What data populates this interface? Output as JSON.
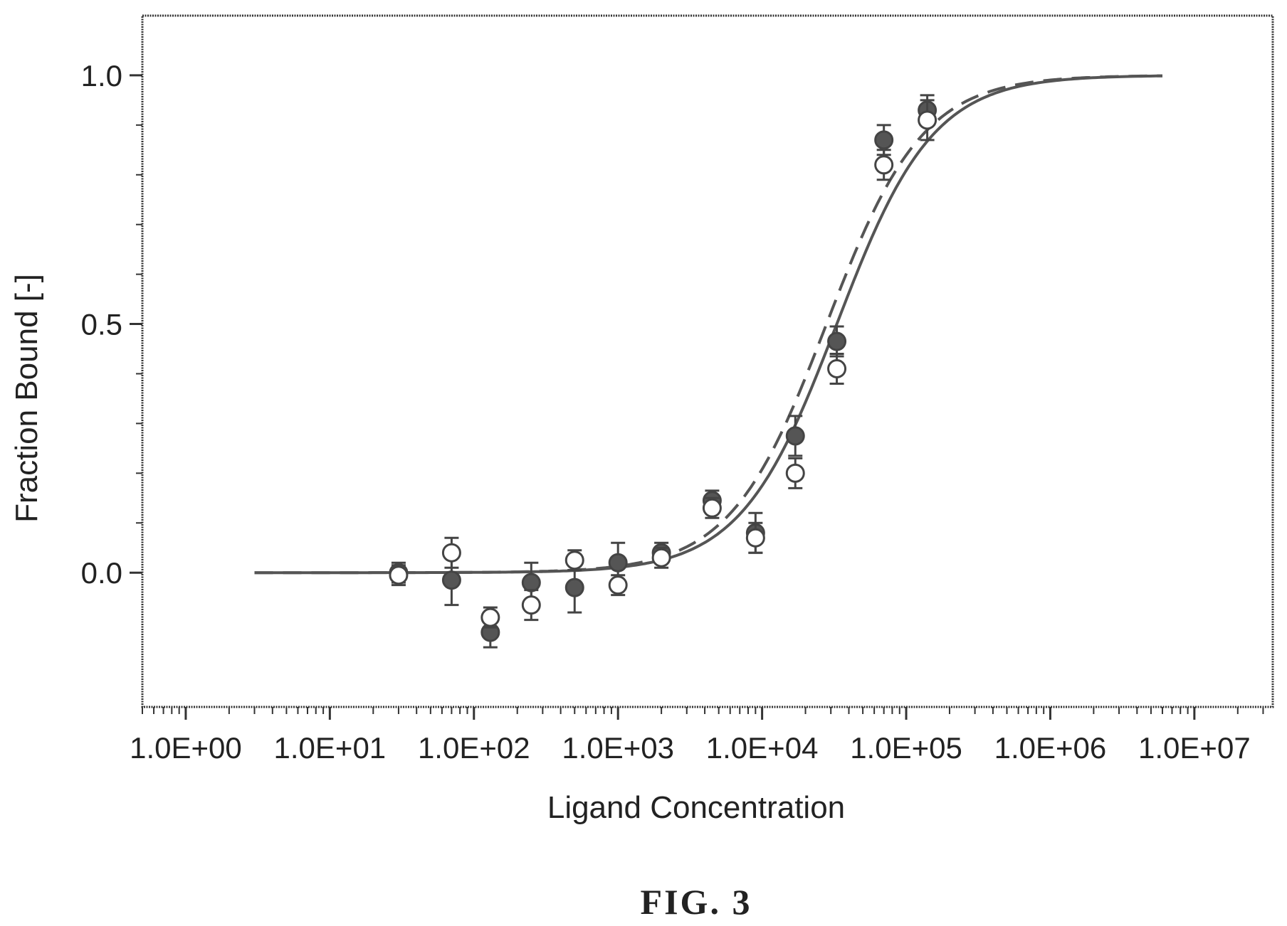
{
  "chart_data": {
    "type": "scatter",
    "xlabel": "Ligand Concentration",
    "ylabel": "Fraction Bound [-]",
    "xscale": "log",
    "xlim": [
      0.5,
      35000000
    ],
    "ylim": [
      -0.27,
      1.12
    ],
    "x_tick_values": [
      1,
      10,
      100,
      1000,
      10000,
      100000,
      1000000,
      10000000
    ],
    "x_tick_labels": [
      "1.0E+00",
      "1.0E+01",
      "1.0E+02",
      "1.0E+03",
      "1.0E+04",
      "1.0E+05",
      "1.0E+06",
      "1.0E+07"
    ],
    "y_tick_values": [
      0,
      0.5,
      1
    ],
    "y_tick_labels": [
      "0.0",
      "0.5",
      "1.0"
    ],
    "grid": false,
    "legend": "none",
    "series": [
      {
        "marker": "filled-circle",
        "color": "#555555",
        "points": [
          {
            "x": 30,
            "y": 0.0,
            "err": 0.02
          },
          {
            "x": 70,
            "y": -0.015,
            "err": 0.05
          },
          {
            "x": 130,
            "y": -0.12,
            "err": 0.03
          },
          {
            "x": 250,
            "y": -0.02,
            "err": 0.04
          },
          {
            "x": 500,
            "y": -0.03,
            "err": 0.05
          },
          {
            "x": 1000,
            "y": 0.02,
            "err": 0.04
          },
          {
            "x": 2000,
            "y": 0.04,
            "err": 0.02
          },
          {
            "x": 4500,
            "y": 0.145,
            "err": 0.02
          },
          {
            "x": 9000,
            "y": 0.08,
            "err": 0.04
          },
          {
            "x": 17000,
            "y": 0.275,
            "err": 0.04
          },
          {
            "x": 33000,
            "y": 0.465,
            "err": 0.03
          },
          {
            "x": 70000,
            "y": 0.87,
            "err": 0.03
          },
          {
            "x": 140000,
            "y": 0.93,
            "err": 0.03
          }
        ]
      },
      {
        "marker": "open-circle",
        "color": "#555555",
        "points": [
          {
            "x": 30,
            "y": -0.005,
            "err": 0.02
          },
          {
            "x": 70,
            "y": 0.04,
            "err": 0.03
          },
          {
            "x": 130,
            "y": -0.09,
            "err": 0.02
          },
          {
            "x": 250,
            "y": -0.065,
            "err": 0.03
          },
          {
            "x": 500,
            "y": 0.025,
            "err": 0.02
          },
          {
            "x": 1000,
            "y": -0.025,
            "err": 0.02
          },
          {
            "x": 2000,
            "y": 0.03,
            "err": 0.02
          },
          {
            "x": 4500,
            "y": 0.13,
            "err": 0.02
          },
          {
            "x": 9000,
            "y": 0.07,
            "err": 0.03
          },
          {
            "x": 17000,
            "y": 0.2,
            "err": 0.03
          },
          {
            "x": 33000,
            "y": 0.41,
            "err": 0.03
          },
          {
            "x": 70000,
            "y": 0.82,
            "err": 0.03
          },
          {
            "x": 140000,
            "y": 0.91,
            "err": 0.04
          }
        ]
      }
    ],
    "fit_curves": [
      {
        "style": "solid",
        "model": "hill",
        "ec50": 33000,
        "hill": 1.3,
        "x_range": [
          3,
          6000000
        ]
      },
      {
        "style": "dashed",
        "model": "hill",
        "ec50": 28000,
        "hill": 1.3,
        "x_range": [
          3,
          6000000
        ]
      }
    ]
  },
  "caption": "FIG. 3"
}
